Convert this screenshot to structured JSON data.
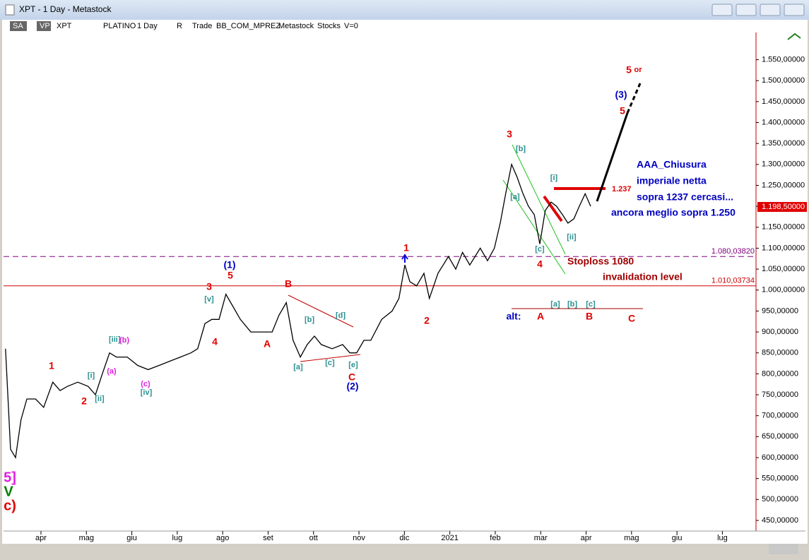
{
  "window": {
    "title": "XPT - 1 Day - Metastock"
  },
  "toolbar": [
    "SA",
    "VP",
    "XPT",
    "PLATINO",
    "1 Day",
    "R",
    "Trade",
    "BB_COM_MPREZ",
    "Metastock",
    "Stocks",
    "V=0"
  ],
  "chart_data": {
    "type": "line",
    "color": "#000000",
    "xlim": [
      0.176,
      16.74
    ],
    "xticks": [
      {
        "value": 1,
        "label": "apr"
      },
      {
        "value": 2,
        "label": "mag"
      },
      {
        "value": 3,
        "label": "giu"
      },
      {
        "value": 4,
        "label": "lug"
      },
      {
        "value": 5,
        "label": "ago"
      },
      {
        "value": 6,
        "label": "set"
      },
      {
        "value": 7,
        "label": "ott"
      },
      {
        "value": 8,
        "label": "nov"
      },
      {
        "value": 9,
        "label": "dic"
      },
      {
        "value": 10,
        "label": "2021"
      },
      {
        "value": 11,
        "label": "feb"
      },
      {
        "value": 12,
        "label": "mar"
      },
      {
        "value": 13,
        "label": "apr"
      },
      {
        "value": 14,
        "label": "mag"
      },
      {
        "value": 15,
        "label": "giu"
      },
      {
        "value": 16,
        "label": "lug"
      }
    ],
    "ylim": [
      428,
      1615
    ],
    "yticks": [
      {
        "value": 450,
        "label": "450,00000"
      },
      {
        "value": 500,
        "label": "500,00000"
      },
      {
        "value": 550,
        "label": "550,00000"
      },
      {
        "value": 600,
        "label": "600,00000"
      },
      {
        "value": 650,
        "label": "650,00000"
      },
      {
        "value": 700,
        "label": "700,00000"
      },
      {
        "value": 750,
        "label": "750,00000"
      },
      {
        "value": 800,
        "label": "800,00000"
      },
      {
        "value": 850,
        "label": "850,00000"
      },
      {
        "value": 900,
        "label": "900,00000"
      },
      {
        "value": 950,
        "label": "950,00000"
      },
      {
        "value": 1000,
        "label": "1.000,00000"
      },
      {
        "value": 1050,
        "label": "1.050,00000"
      },
      {
        "value": 1100,
        "label": "1.100,00000"
      },
      {
        "value": 1150,
        "label": "1.150,00000"
      },
      {
        "value": 1200,
        "label": "1.200,00000"
      },
      {
        "value": 1250,
        "label": "1.250,00000"
      },
      {
        "value": 1300,
        "label": "1.300,00000"
      },
      {
        "value": 1350,
        "label": "1.350,00000"
      },
      {
        "value": 1400,
        "label": "1.400,00000"
      },
      {
        "value": 1450,
        "label": "1.450,00000"
      },
      {
        "value": 1500,
        "label": "1.500,00000"
      },
      {
        "value": 1550,
        "label": "1.550,00000"
      }
    ],
    "x": [
      0.22,
      0.33,
      0.44,
      0.56,
      0.69,
      0.88,
      1.06,
      1.26,
      1.42,
      1.58,
      1.81,
      2.04,
      2.2,
      2.35,
      2.51,
      2.66,
      2.9,
      3.13,
      3.36,
      3.6,
      3.83,
      4.07,
      4.3,
      4.45,
      4.61,
      4.76,
      4.92,
      5.07,
      5.23,
      5.39,
      5.62,
      5.85,
      6.09,
      6.24,
      6.4,
      6.55,
      6.71,
      6.86,
      7.02,
      7.17,
      7.41,
      7.64,
      7.8,
      7.95,
      8.11,
      8.26,
      8.5,
      8.73,
      8.88,
      9.01,
      9.12,
      9.27,
      9.43,
      9.55,
      9.74,
      9.97,
      10.13,
      10.28,
      10.44,
      10.67,
      10.83,
      10.98,
      11.11,
      11.23,
      11.36,
      11.48,
      11.61,
      11.73,
      11.86,
      11.98,
      12.1,
      12.23,
      12.35,
      12.48,
      12.6,
      12.73,
      12.85,
      12.98,
      13.1
    ],
    "values": [
      860,
      620,
      600,
      690,
      740,
      740,
      720,
      780,
      760,
      770,
      780,
      770,
      750,
      800,
      850,
      840,
      840,
      820,
      810,
      820,
      830,
      840,
      850,
      860,
      920,
      930,
      930,
      990,
      960,
      930,
      900,
      900,
      900,
      940,
      970,
      880,
      840,
      870,
      890,
      870,
      860,
      870,
      850,
      850,
      880,
      880,
      930,
      950,
      980,
      1060,
      1020,
      1010,
      1040,
      980,
      1040,
      1080,
      1050,
      1090,
      1060,
      1100,
      1070,
      1100,
      1160,
      1230,
      1300,
      1270,
      1230,
      1200,
      1180,
      1110,
      1190,
      1210,
      1200,
      1180,
      1160,
      1170,
      1200,
      1230,
      1200
    ],
    "levels": [
      {
        "value": 1080.0382,
        "label": "1.080,03820",
        "color": "#800080"
      },
      {
        "value": 1010.03734,
        "label": "1.010,03734",
        "color": "#d00000"
      }
    ],
    "last_price": {
      "value": 1198.5,
      "label": "1.198,50000"
    },
    "annotations": [
      {
        "text": "1",
        "color": "#e00000"
      },
      {
        "text": "2",
        "color": "#e00000"
      },
      {
        "text": "[i]",
        "color": "#2a9090"
      },
      {
        "text": "[ii]",
        "color": "#2a9090"
      },
      {
        "text": "[iii]",
        "color": "#2a9090"
      },
      {
        "text": "(b)",
        "color": "#e020e0"
      },
      {
        "text": "(a)",
        "color": "#e020e0"
      },
      {
        "text": "(c)",
        "color": "#e020e0"
      },
      {
        "text": "[iv]",
        "color": "#2a9090"
      },
      {
        "text": "4",
        "color": "#e00000"
      },
      {
        "text": "[v]",
        "color": "#2a9090"
      },
      {
        "text": "3",
        "color": "#e00000"
      },
      {
        "text": "(1)",
        "color": "#0000c0"
      },
      {
        "text": "5",
        "color": "#e00000"
      },
      {
        "text": "A",
        "color": "#e00000"
      },
      {
        "text": "B",
        "color": "#e00000"
      },
      {
        "text": "[b]",
        "color": "#2a9090"
      },
      {
        "text": "[d]",
        "color": "#2a9090"
      },
      {
        "text": "[a]",
        "color": "#2a9090"
      },
      {
        "text": "[c]",
        "color": "#2a9090"
      },
      {
        "text": "[e]",
        "color": "#2a9090"
      },
      {
        "text": "C",
        "color": "#e00000"
      },
      {
        "text": "(2)",
        "color": "#0000c0"
      },
      {
        "text": "1",
        "color": "#e00000"
      },
      {
        "text": "2",
        "color": "#e00000"
      },
      {
        "text": "3",
        "color": "#e00000"
      },
      {
        "text": "[b]",
        "color": "#2a9090"
      },
      {
        "text": "[a]",
        "color": "#2a9090"
      },
      {
        "text": "[i]",
        "color": "#2a9090"
      },
      {
        "text": "[ii]",
        "color": "#2a9090"
      },
      {
        "text": "[c]",
        "color": "#2a9090"
      },
      {
        "text": "4",
        "color": "#e00000"
      },
      {
        "text": "5",
        "color": "#e00000"
      },
      {
        "text": "or",
        "color": "#e00000"
      },
      {
        "text": "(3)",
        "color": "#0000c0"
      },
      {
        "text": "5",
        "color": "#e00000"
      },
      {
        "text": "AAA_Chiusura",
        "color": "#0000c0"
      },
      {
        "text": "imperiale netta",
        "color": "#0000c0"
      },
      {
        "text": "sopra 1237 cercasi...",
        "color": "#0000c0"
      },
      {
        "text": "ancora meglio sopra 1.250",
        "color": "#0000c0"
      },
      {
        "text": "Stoploss 1080",
        "color": "#a00000"
      },
      {
        "text": "invalidation level",
        "color": "#a00000"
      },
      {
        "text": "1.237",
        "color": "#e00000"
      },
      {
        "text": "[a]",
        "color": "#2a9090"
      },
      {
        "text": "[b]",
        "color": "#2a9090"
      },
      {
        "text": "[c]",
        "color": "#2a9090"
      },
      {
        "text": "alt:",
        "color": "#0000c0"
      },
      {
        "text": "A",
        "color": "#e00000"
      },
      {
        "text": "B",
        "color": "#e00000"
      },
      {
        "text": "C",
        "color": "#e00000"
      },
      {
        "text": "5]",
        "color": "#e020e0"
      },
      {
        "text": "V",
        "color": "#008000"
      },
      {
        "text": "c)",
        "color": "#e00000"
      }
    ]
  }
}
